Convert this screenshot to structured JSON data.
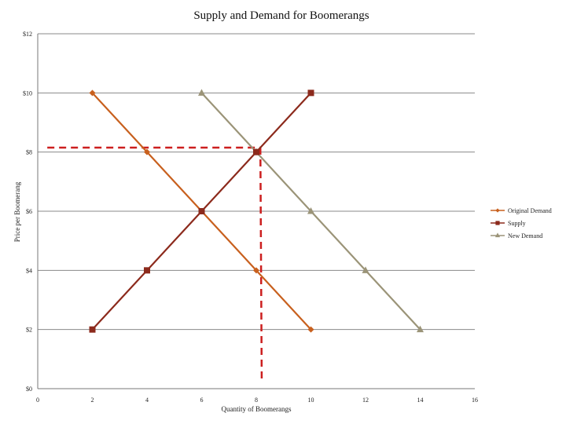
{
  "chart_data": {
    "type": "line",
    "title": "Supply and Demand for Boomerangs",
    "xlabel": "Quantity of Boomerangs",
    "ylabel": "Price per Boomerang",
    "xlim": [
      0,
      16
    ],
    "ylim": [
      0,
      12
    ],
    "x_ticks": [
      "0",
      "2",
      "4",
      "6",
      "8",
      "10",
      "12",
      "14",
      "16"
    ],
    "y_ticks": [
      "$0",
      "$2",
      "$4",
      "$6",
      "$8",
      "$10",
      "$12"
    ],
    "grid": "horizontal",
    "legend_position": "right",
    "series": [
      {
        "name": "Original Demand",
        "color": "#c8601e",
        "marker": "diamond",
        "points": [
          [
            2,
            10
          ],
          [
            4,
            8
          ],
          [
            6,
            6
          ],
          [
            8,
            4
          ],
          [
            10,
            2
          ]
        ]
      },
      {
        "name": "Supply",
        "color": "#8c2a1c",
        "marker": "square",
        "points": [
          [
            2,
            2
          ],
          [
            4,
            4
          ],
          [
            6,
            6
          ],
          [
            8,
            8
          ],
          [
            10,
            10
          ]
        ]
      },
      {
        "name": "New Demand",
        "color": "#9b9478",
        "marker": "triangle",
        "points": [
          [
            6,
            10
          ],
          [
            8,
            8
          ],
          [
            10,
            6
          ],
          [
            12,
            4
          ],
          [
            14,
            2
          ]
        ]
      }
    ],
    "reference_lines": {
      "color": "#cc1f1f",
      "horizontal_price": 8.15,
      "vertical_quantity": 8.15
    }
  }
}
